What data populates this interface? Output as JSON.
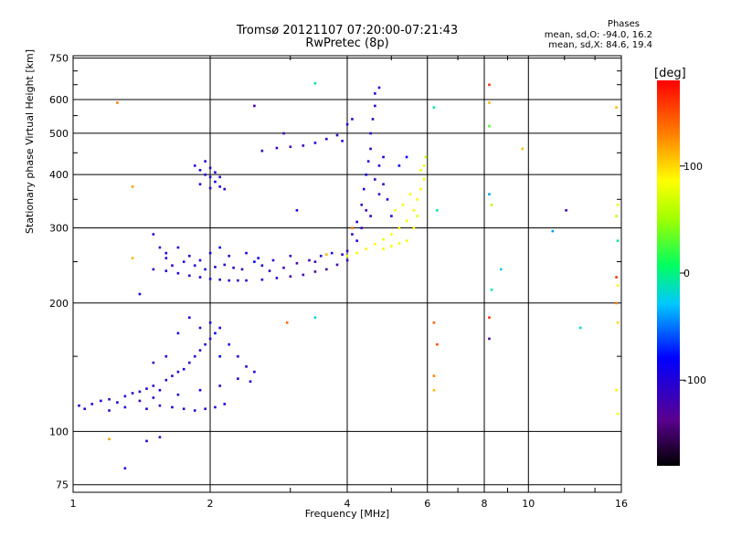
{
  "chart_data": {
    "type": "scatter",
    "title": "Tromsø 20121107 07:20:00-07:21:43",
    "subtitle": "RwPretec (8p)",
    "xlabel": "Frequency [MHz]",
    "ylabel": "Stationary phase Virtual Height [km]",
    "x_scale": "log",
    "y_scale": "log",
    "xlim": [
      1,
      16
    ],
    "ylim": [
      72,
      760
    ],
    "x_ticks": [
      1,
      2,
      4,
      6,
      8,
      10,
      16
    ],
    "y_ticks": [
      75,
      100,
      200,
      300,
      400,
      500,
      600,
      750
    ],
    "grid": true,
    "phase_info": {
      "heading": "Phases",
      "line_o": "mean, sd,O: -94.0, 16.2",
      "line_x": "mean, sd,X:  84.6, 19.4"
    },
    "colorbar": {
      "label": "[deg]",
      "ticks": [
        100,
        0,
        -100
      ],
      "range": [
        -180,
        180
      ]
    },
    "series": [
      {
        "points": [
          [
            1.03,
            115,
            -100
          ],
          [
            1.06,
            113,
            -110
          ],
          [
            1.1,
            116,
            -105
          ],
          [
            1.15,
            118,
            -100
          ],
          [
            1.2,
            119,
            -110
          ],
          [
            1.25,
            117,
            -95
          ],
          [
            1.3,
            121,
            -105
          ],
          [
            1.35,
            123,
            -100
          ],
          [
            1.4,
            124,
            -110
          ],
          [
            1.45,
            126,
            -100
          ],
          [
            1.5,
            128,
            -105
          ],
          [
            1.55,
            125,
            -90
          ],
          [
            1.6,
            132,
            -100
          ],
          [
            1.65,
            135,
            -110
          ],
          [
            1.7,
            138,
            -100
          ],
          [
            1.75,
            140,
            -95
          ],
          [
            1.8,
            145,
            -105
          ],
          [
            1.85,
            150,
            -100
          ],
          [
            1.9,
            155,
            -110
          ],
          [
            1.95,
            160,
            -95
          ],
          [
            2.0,
            165,
            -100
          ],
          [
            2.05,
            170,
            -80
          ],
          [
            2.1,
            175,
            -100
          ],
          [
            2.2,
            160,
            -90
          ],
          [
            2.3,
            150,
            -100
          ],
          [
            2.4,
            142,
            -105
          ],
          [
            2.5,
            138,
            -100
          ],
          [
            1.5,
            145,
            -110
          ],
          [
            1.6,
            150,
            -100
          ],
          [
            1.7,
            170,
            -90
          ],
          [
            1.8,
            185,
            -100
          ],
          [
            1.9,
            175,
            -105
          ],
          [
            2.0,
            180,
            -95
          ],
          [
            2.1,
            150,
            -80
          ],
          [
            1.45,
            113,
            -100
          ],
          [
            1.55,
            115,
            -110
          ],
          [
            1.65,
            114,
            -95
          ],
          [
            1.75,
            113,
            -105
          ],
          [
            1.85,
            112,
            -100
          ],
          [
            1.95,
            113,
            -110
          ],
          [
            2.05,
            114,
            -100
          ],
          [
            2.15,
            116,
            -95
          ],
          [
            1.2,
            112,
            -110
          ],
          [
            1.3,
            114,
            -100
          ],
          [
            1.4,
            118,
            -120
          ],
          [
            1.5,
            120,
            -100
          ],
          [
            1.7,
            122,
            -95
          ],
          [
            1.9,
            125,
            -100
          ],
          [
            2.1,
            128,
            -110
          ],
          [
            2.3,
            133,
            -100
          ],
          [
            2.45,
            131,
            -95
          ]
        ]
      },
      {
        "points": [
          [
            1.5,
            290,
            -100
          ],
          [
            1.55,
            270,
            -110
          ],
          [
            1.6,
            255,
            -100
          ],
          [
            1.5,
            240,
            -105
          ],
          [
            1.6,
            238,
            -95
          ],
          [
            1.7,
            235,
            -100
          ],
          [
            1.8,
            232,
            -110
          ],
          [
            1.9,
            230,
            -100
          ],
          [
            2.0,
            228,
            -95
          ],
          [
            2.1,
            227,
            -105
          ],
          [
            2.2,
            226,
            -100
          ],
          [
            2.3,
            226,
            -110
          ],
          [
            2.4,
            226,
            -100
          ],
          [
            2.6,
            227,
            -95
          ],
          [
            2.8,
            229,
            -105
          ],
          [
            3.0,
            231,
            -120
          ],
          [
            3.2,
            233,
            -125
          ],
          [
            3.4,
            237,
            -130
          ],
          [
            3.6,
            240,
            -125
          ],
          [
            3.8,
            246,
            -120
          ],
          [
            4.0,
            252,
            -110
          ],
          [
            1.6,
            262,
            -100
          ],
          [
            1.7,
            270,
            -95
          ],
          [
            1.8,
            258,
            -105
          ],
          [
            1.9,
            252,
            -100
          ],
          [
            2.0,
            262,
            -90
          ],
          [
            2.1,
            270,
            -80
          ],
          [
            2.2,
            258,
            -100
          ],
          [
            2.4,
            262,
            -95
          ],
          [
            2.5,
            250,
            -85
          ],
          [
            2.6,
            245,
            -100
          ],
          [
            2.7,
            238,
            -110
          ],
          [
            2.9,
            242,
            -120
          ],
          [
            3.1,
            248,
            -125
          ],
          [
            3.3,
            252,
            -120
          ],
          [
            3.5,
            258,
            -110
          ],
          [
            3.7,
            262,
            -100
          ],
          [
            1.65,
            245,
            -110
          ],
          [
            1.75,
            250,
            -100
          ],
          [
            1.85,
            245,
            -95
          ],
          [
            1.95,
            240,
            -105
          ],
          [
            2.05,
            243,
            -100
          ],
          [
            2.15,
            246,
            -110
          ],
          [
            2.25,
            242,
            -100
          ],
          [
            2.35,
            240,
            -105
          ],
          [
            2.55,
            255,
            -90
          ],
          [
            2.75,
            252,
            -100
          ],
          [
            3.0,
            258,
            -110
          ],
          [
            3.4,
            250,
            -120
          ],
          [
            3.9,
            260,
            -100
          ]
        ]
      },
      {
        "points": [
          [
            1.85,
            420,
            -100
          ],
          [
            1.9,
            410,
            -105
          ],
          [
            1.95,
            400,
            -110
          ],
          [
            2.0,
            395,
            -100
          ],
          [
            2.05,
            385,
            -95
          ],
          [
            2.1,
            375,
            -100
          ],
          [
            2.15,
            370,
            -105
          ],
          [
            1.95,
            430,
            -100
          ],
          [
            2.0,
            415,
            -110
          ],
          [
            2.05,
            405,
            -100
          ],
          [
            2.1,
            395,
            -95
          ],
          [
            1.9,
            380,
            -100
          ],
          [
            2.0,
            372,
            -105
          ]
        ]
      },
      {
        "points": [
          [
            2.6,
            455,
            -110
          ],
          [
            2.8,
            462,
            -115
          ],
          [
            3.0,
            465,
            -120
          ],
          [
            3.2,
            468,
            -110
          ],
          [
            3.4,
            475,
            -100
          ],
          [
            3.6,
            485,
            -105
          ],
          [
            3.8,
            495,
            -110
          ],
          [
            3.9,
            480,
            -100
          ],
          [
            4.0,
            525,
            -110
          ],
          [
            4.1,
            540,
            -105
          ]
        ]
      },
      {
        "points": [
          [
            4.0,
            265,
            -110
          ],
          [
            4.1,
            290,
            -105
          ],
          [
            4.2,
            310,
            -100
          ],
          [
            4.3,
            340,
            -110
          ],
          [
            4.35,
            370,
            -100
          ],
          [
            4.4,
            400,
            -95
          ],
          [
            4.45,
            430,
            -105
          ],
          [
            4.5,
            460,
            -110
          ],
          [
            4.5,
            500,
            -100
          ],
          [
            4.55,
            540,
            -110
          ],
          [
            4.6,
            580,
            -105
          ],
          [
            4.6,
            620,
            -100
          ],
          [
            4.4,
            330,
            -120
          ],
          [
            4.3,
            300,
            -110
          ],
          [
            4.2,
            280,
            -100
          ],
          [
            4.7,
            420,
            -100
          ],
          [
            4.8,
            380,
            -110
          ],
          [
            4.9,
            350,
            -100
          ],
          [
            5.0,
            320,
            -95
          ],
          [
            4.6,
            390,
            -105
          ],
          [
            4.7,
            360,
            -110
          ],
          [
            4.5,
            320,
            -100
          ],
          [
            4.8,
            440,
            -95
          ],
          [
            5.2,
            420,
            -85
          ],
          [
            5.4,
            440,
            -80
          ]
        ]
      },
      {
        "points": [
          [
            4.0,
            258,
            80
          ],
          [
            4.2,
            262,
            85
          ],
          [
            4.4,
            268,
            90
          ],
          [
            4.6,
            275,
            85
          ],
          [
            4.8,
            282,
            80
          ],
          [
            5.0,
            290,
            85
          ],
          [
            5.2,
            300,
            90
          ],
          [
            5.4,
            312,
            85
          ],
          [
            5.6,
            330,
            80
          ],
          [
            5.7,
            350,
            85
          ],
          [
            5.8,
            370,
            90
          ],
          [
            5.9,
            390,
            85
          ],
          [
            5.8,
            410,
            80
          ],
          [
            5.6,
            300,
            85
          ],
          [
            5.4,
            280,
            90
          ],
          [
            5.2,
            276,
            80
          ],
          [
            5.0,
            272,
            85
          ],
          [
            4.8,
            268,
            90
          ],
          [
            5.5,
            360,
            85
          ],
          [
            5.7,
            320,
            80
          ],
          [
            5.3,
            340,
            90
          ],
          [
            5.1,
            330,
            85
          ],
          [
            5.9,
            420,
            80
          ],
          [
            5.95,
            440,
            60
          ]
        ]
      },
      {
        "points": [
          [
            1.25,
            590,
            130
          ],
          [
            1.35,
            375,
            120
          ],
          [
            1.35,
            255,
            110
          ],
          [
            1.4,
            210,
            -90
          ],
          [
            1.2,
            96,
            120
          ],
          [
            1.3,
            82,
            -100
          ],
          [
            1.45,
            95,
            -100
          ],
          [
            1.55,
            97,
            -110
          ],
          [
            3.4,
            655,
            -10
          ],
          [
            2.5,
            580,
            -120
          ],
          [
            4.1,
            300,
            130
          ],
          [
            4.7,
            640,
            -100
          ],
          [
            6.2,
            575,
            -10
          ],
          [
            6.3,
            330,
            -10
          ],
          [
            6.2,
            180,
            140
          ],
          [
            6.3,
            160,
            150
          ],
          [
            6.2,
            135,
            130
          ],
          [
            6.2,
            125,
            110
          ],
          [
            8.2,
            650,
            160
          ],
          [
            8.2,
            590,
            110
          ],
          [
            8.2,
            520,
            30
          ],
          [
            8.2,
            360,
            -40
          ],
          [
            8.3,
            340,
            60
          ],
          [
            8.2,
            185,
            160
          ],
          [
            8.2,
            165,
            -130
          ],
          [
            8.3,
            215,
            -10
          ],
          [
            8.7,
            240,
            -30
          ],
          [
            9.7,
            460,
            110
          ],
          [
            12.1,
            330,
            -120
          ],
          [
            11.3,
            295,
            -40
          ],
          [
            13.0,
            175,
            -20
          ],
          [
            15.6,
            575,
            110
          ],
          [
            15.7,
            340,
            80
          ],
          [
            15.6,
            320,
            60
          ],
          [
            15.7,
            280,
            -10
          ],
          [
            15.6,
            230,
            160
          ],
          [
            15.7,
            220,
            90
          ],
          [
            15.6,
            200,
            130
          ],
          [
            15.7,
            180,
            100
          ],
          [
            15.6,
            125,
            90
          ],
          [
            15.7,
            110,
            80
          ],
          [
            2.9,
            500,
            -120
          ],
          [
            3.1,
            330,
            -100
          ],
          [
            3.6,
            260,
            110
          ],
          [
            3.4,
            185,
            -20
          ],
          [
            2.95,
            180,
            140
          ]
        ]
      }
    ]
  }
}
